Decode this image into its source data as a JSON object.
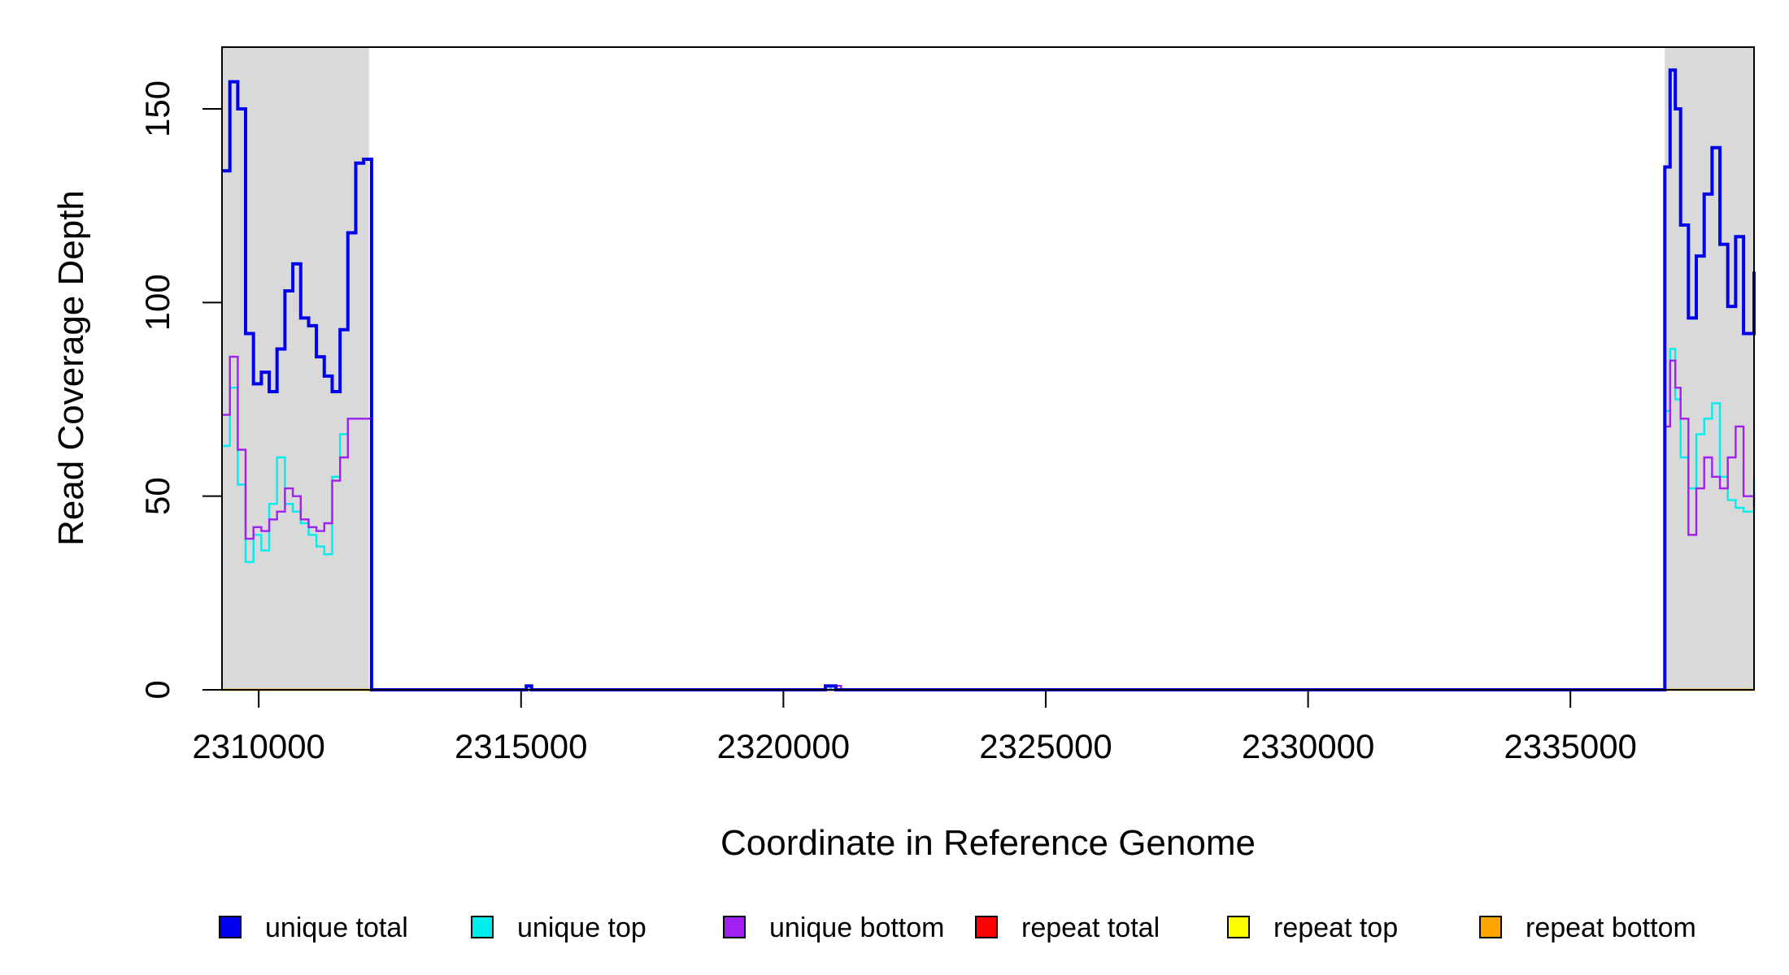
{
  "chart_data": {
    "type": "line",
    "xlabel": "Coordinate in Reference Genome",
    "ylabel": "Read Coverage Depth",
    "xlim": [
      2309300,
      2338500
    ],
    "ylim": [
      0,
      160
    ],
    "x_ticks": [
      2310000,
      2315000,
      2320000,
      2325000,
      2330000,
      2335000
    ],
    "x_tick_labels": [
      "2310000",
      "2315000",
      "2320000",
      "2325000",
      "2330000",
      "2335000"
    ],
    "y_ticks": [
      0,
      50,
      100,
      150
    ],
    "y_tick_labels": [
      "0",
      "50",
      "100",
      "150"
    ],
    "shaded_regions": [
      [
        2309300,
        2312100
      ],
      [
        2336800,
        2338500
      ]
    ],
    "shade_color": "#d9d9d9",
    "legend_position": "bottom",
    "series": [
      {
        "name": "unique total",
        "color": "#0000ee",
        "x": [
          2309300,
          2309450,
          2309600,
          2309750,
          2309900,
          2310050,
          2310200,
          2310350,
          2310500,
          2310650,
          2310800,
          2310950,
          2311100,
          2311250,
          2311400,
          2311550,
          2311700,
          2311850,
          2312000,
          2312100,
          2312150,
          2312300,
          2315000,
          2315100,
          2315200,
          2315300,
          2320600,
          2320800,
          2321000,
          2321300,
          2336700,
          2336800,
          2336900,
          2337000,
          2337100,
          2337250,
          2337400,
          2337550,
          2337700,
          2337850,
          2338000,
          2338150,
          2338300,
          2338500
        ],
        "values": [
          134,
          157,
          150,
          92,
          79,
          82,
          77,
          88,
          103,
          110,
          96,
          94,
          86,
          81,
          77,
          93,
          118,
          136,
          137,
          137,
          0,
          0,
          0,
          1,
          0,
          0,
          0,
          1,
          0,
          0,
          0,
          135,
          160,
          150,
          120,
          96,
          112,
          128,
          140,
          115,
          99,
          117,
          92,
          108
        ]
      },
      {
        "name": "unique top",
        "color": "#00eeee",
        "x": [
          2309300,
          2309450,
          2309600,
          2309750,
          2309900,
          2310050,
          2310200,
          2310350,
          2310500,
          2310650,
          2310800,
          2310950,
          2311100,
          2311250,
          2311400,
          2311550,
          2311700,
          2311850,
          2312000,
          2312100,
          2312150,
          2312300,
          2320600,
          2320800,
          2320900,
          2336700,
          2336800,
          2336900,
          2337000,
          2337100,
          2337250,
          2337400,
          2337550,
          2337700,
          2337850,
          2338000,
          2338150,
          2338300,
          2338500
        ],
        "values": [
          63,
          78,
          53,
          33,
          40,
          36,
          48,
          60,
          48,
          46,
          43,
          40,
          37,
          35,
          55,
          66,
          70,
          70,
          70,
          70,
          0,
          0,
          0,
          1,
          0,
          0,
          72,
          88,
          75,
          60,
          52,
          66,
          70,
          74,
          55,
          49,
          47,
          46,
          55
        ]
      },
      {
        "name": "unique bottom",
        "color": "#a020f0",
        "x": [
          2309300,
          2309450,
          2309600,
          2309750,
          2309900,
          2310050,
          2310200,
          2310350,
          2310500,
          2310650,
          2310800,
          2310950,
          2311100,
          2311250,
          2311400,
          2311550,
          2311700,
          2311850,
          2312000,
          2312100,
          2312150,
          2312300,
          2320600,
          2321000,
          2321100,
          2336700,
          2336800,
          2336900,
          2337000,
          2337100,
          2337250,
          2337400,
          2337550,
          2337700,
          2337850,
          2338000,
          2338150,
          2338300,
          2338500
        ],
        "values": [
          71,
          86,
          62,
          39,
          42,
          41,
          44,
          46,
          52,
          50,
          44,
          42,
          41,
          43,
          54,
          60,
          70,
          70,
          70,
          70,
          0,
          0,
          0,
          1,
          0,
          0,
          68,
          85,
          78,
          70,
          40,
          52,
          60,
          55,
          52,
          60,
          68,
          50,
          47
        ]
      },
      {
        "name": "repeat total",
        "color": "#ff0000",
        "x": [
          2309300,
          2338500
        ],
        "values": [
          0,
          0
        ]
      },
      {
        "name": "repeat top",
        "color": "#ffff00",
        "x": [
          2309300,
          2338500
        ],
        "values": [
          0,
          0
        ]
      },
      {
        "name": "repeat bottom",
        "color": "#ffa500",
        "x": [
          2309300,
          2338500
        ],
        "values": [
          0,
          0
        ]
      }
    ]
  }
}
